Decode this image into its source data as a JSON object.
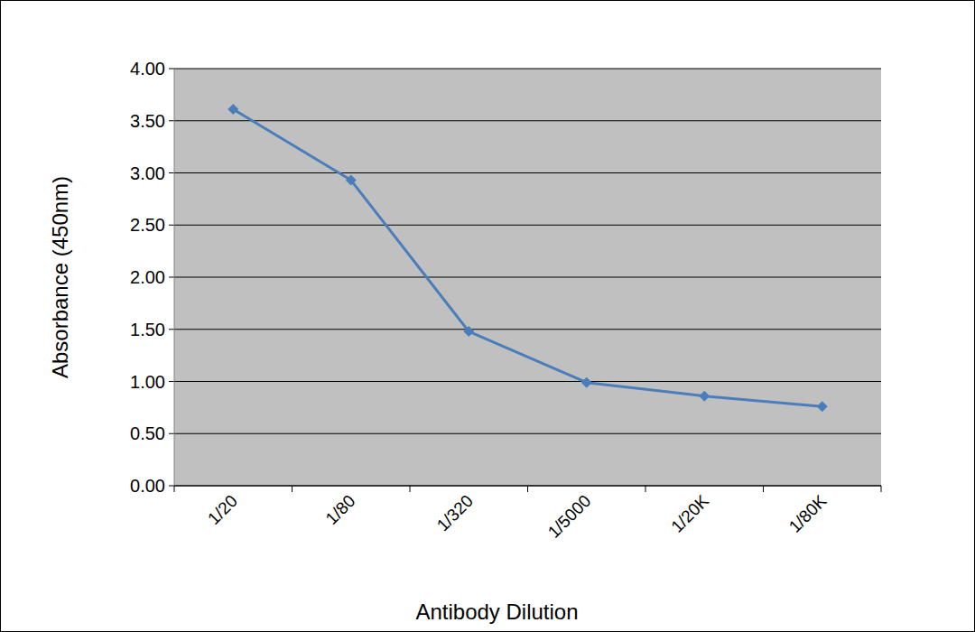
{
  "chart_data": {
    "type": "line",
    "x_label": "Antibody Dilution",
    "y_label": "Absorbance (450nm)",
    "categories": [
      "1/20",
      "1/80",
      "1/320",
      "1/5000",
      "1/20K",
      "1/80K"
    ],
    "values": [
      3.61,
      2.93,
      1.48,
      0.99,
      0.86,
      0.76
    ],
    "color": "#4a7ebb",
    "marker": "diamond",
    "ylim": [
      0,
      4
    ],
    "yticks": [
      {
        "value": 0,
        "label": "0.00"
      },
      {
        "value": 0.5,
        "label": "0.50"
      },
      {
        "value": 1,
        "label": "1.00"
      },
      {
        "value": 1.5,
        "label": "1.50"
      },
      {
        "value": 2,
        "label": "2.00"
      },
      {
        "value": 2.5,
        "label": "2.50"
      },
      {
        "value": 3,
        "label": "3.00"
      },
      {
        "value": 3.5,
        "label": "3.50"
      },
      {
        "value": 4,
        "label": "4.00"
      }
    ],
    "grid": true
  }
}
